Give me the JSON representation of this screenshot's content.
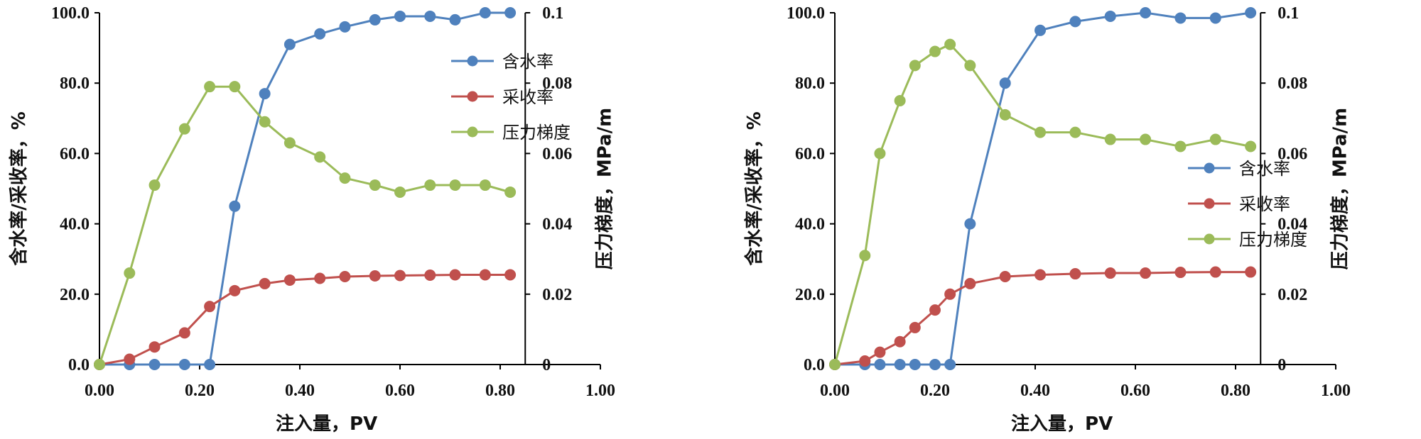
{
  "chart_data": [
    {
      "type": "line",
      "title": "",
      "xlabel": "注入量，PV",
      "ylabel": "含水率/采收率，%",
      "y2label": "压力梯度，MPa/m",
      "xlim": [
        0,
        1.0
      ],
      "ylim": [
        0,
        100
      ],
      "y2lim": [
        0,
        0.1
      ],
      "x_ticks": [
        "0.00",
        "0.20",
        "0.40",
        "0.60",
        "0.80",
        "1.00"
      ],
      "y_ticks": [
        "0.0",
        "20.0",
        "40.0",
        "60.0",
        "80.0",
        "100.0"
      ],
      "y2_ticks": [
        "0",
        "0.02",
        "0.04",
        "0.06",
        "0.08",
        "0.1"
      ],
      "legend_position": "top-right",
      "series": [
        {
          "name": "含水率",
          "color": "#4f81bd",
          "axis": "left",
          "x": [
            0.0,
            0.06,
            0.11,
            0.17,
            0.22,
            0.27,
            0.33,
            0.38,
            0.44,
            0.49,
            0.55,
            0.6,
            0.66,
            0.71,
            0.77,
            0.82
          ],
          "y": [
            0,
            0,
            0,
            0,
            0,
            45,
            77,
            91,
            94,
            96,
            98,
            99,
            99,
            98,
            100,
            100
          ]
        },
        {
          "name": "采收率",
          "color": "#c0504d",
          "axis": "left",
          "x": [
            0.0,
            0.06,
            0.11,
            0.17,
            0.22,
            0.27,
            0.33,
            0.38,
            0.44,
            0.49,
            0.55,
            0.6,
            0.66,
            0.71,
            0.77,
            0.82
          ],
          "y": [
            0,
            1.5,
            5,
            9,
            16.5,
            21,
            23,
            24,
            24.5,
            25,
            25.2,
            25.3,
            25.4,
            25.5,
            25.5,
            25.5
          ]
        },
        {
          "name": "压力梯度",
          "color": "#9bbb59",
          "axis": "right",
          "x": [
            0.0,
            0.06,
            0.11,
            0.17,
            0.22,
            0.27,
            0.33,
            0.38,
            0.44,
            0.49,
            0.55,
            0.6,
            0.66,
            0.71,
            0.77,
            0.82
          ],
          "y": [
            0,
            0.026,
            0.051,
            0.067,
            0.079,
            0.079,
            0.069,
            0.063,
            0.059,
            0.053,
            0.051,
            0.049,
            0.051,
            0.051,
            0.051,
            0.049
          ]
        }
      ]
    },
    {
      "type": "line",
      "title": "",
      "xlabel": "注入量，PV",
      "ylabel": "含水率/采收率，%",
      "y2label": "压力梯度，MPa/m",
      "xlim": [
        0,
        1.0
      ],
      "ylim": [
        0,
        100
      ],
      "y2lim": [
        0,
        0.1
      ],
      "x_ticks": [
        "0.00",
        "0.20",
        "0.40",
        "0.60",
        "0.80",
        "1.00"
      ],
      "y_ticks": [
        "0.0",
        "20.0",
        "40.0",
        "60.0",
        "80.0",
        "100.0"
      ],
      "y2_ticks": [
        "0",
        "0.02",
        "0.04",
        "0.06",
        "0.08",
        "0.1"
      ],
      "legend_position": "center-right",
      "series": [
        {
          "name": "含水率",
          "color": "#4f81bd",
          "axis": "left",
          "x": [
            0.0,
            0.06,
            0.09,
            0.13,
            0.16,
            0.2,
            0.23,
            0.27,
            0.34,
            0.41,
            0.48,
            0.55,
            0.62,
            0.69,
            0.76,
            0.83
          ],
          "y": [
            0,
            0,
            0,
            0,
            0,
            0,
            0,
            40,
            80,
            95,
            97.5,
            99,
            100,
            98.5,
            98.5,
            100
          ]
        },
        {
          "name": "采收率",
          "color": "#c0504d",
          "axis": "left",
          "x": [
            0.0,
            0.06,
            0.09,
            0.13,
            0.16,
            0.2,
            0.23,
            0.27,
            0.34,
            0.41,
            0.48,
            0.55,
            0.62,
            0.69,
            0.76,
            0.83
          ],
          "y": [
            0,
            1,
            3.5,
            6.5,
            10.5,
            15.5,
            20,
            23,
            25,
            25.5,
            25.8,
            26,
            26,
            26.2,
            26.3,
            26.3
          ]
        },
        {
          "name": "压力梯度",
          "color": "#9bbb59",
          "axis": "right",
          "x": [
            0.0,
            0.06,
            0.09,
            0.13,
            0.16,
            0.2,
            0.23,
            0.27,
            0.34,
            0.41,
            0.48,
            0.55,
            0.62,
            0.69,
            0.76,
            0.83
          ],
          "y": [
            0,
            0.031,
            0.06,
            0.075,
            0.085,
            0.089,
            0.091,
            0.085,
            0.071,
            0.066,
            0.066,
            0.064,
            0.064,
            0.062,
            0.064,
            0.062
          ]
        }
      ]
    }
  ]
}
